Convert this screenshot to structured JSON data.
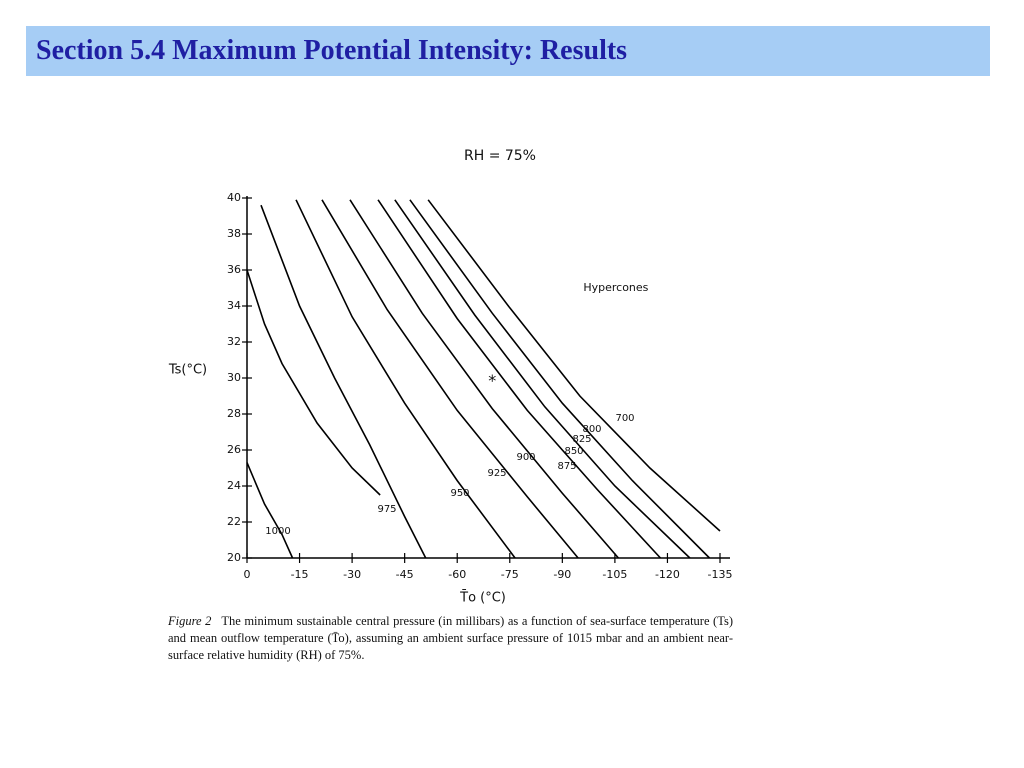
{
  "slide_title": "Section 5.4 Maximum Potential Intensity: Results",
  "caption_label": "Figure 2",
  "caption": "The minimum sustainable central pressure (in millibars) as a function of sea-surface temperature (Ts) and mean outflow temperature (T̄o), assuming an ambient surface pressure of 1015 mbar and an ambient near-surface relative humidity (RH) of 75%.",
  "chart_data": {
    "type": "line",
    "title": "RH = 75%",
    "x_label": "T̄o (°C)",
    "y_label": "Ts(°C)",
    "xlim": [
      0,
      -135
    ],
    "ylim": [
      20,
      40
    ],
    "xticks": [
      0,
      -15,
      -30,
      -45,
      -60,
      -75,
      -90,
      -105,
      -120,
      -135
    ],
    "yticks": [
      20,
      22,
      24,
      26,
      28,
      30,
      32,
      34,
      36,
      38,
      40
    ],
    "annotations": [
      {
        "text": "Hypercones",
        "x": -96,
        "y": 35
      },
      {
        "text": "*",
        "x": -70,
        "y": 29.8
      }
    ],
    "series": [
      {
        "name": "1000",
        "color": "#000000",
        "x": [
          0,
          -5,
          -10,
          -13
        ],
        "values": [
          25.3,
          23,
          21.3,
          20
        ]
      },
      {
        "name": "975",
        "color": "#000000",
        "x": [
          0,
          -5,
          -10,
          -20,
          -30,
          -38
        ],
        "values": [
          36,
          33,
          30.8,
          27.5,
          25,
          23.5
        ]
      },
      {
        "name": "950",
        "color": "#000000",
        "x": [
          -4,
          -15,
          -25,
          -35,
          -45,
          -51
        ],
        "values": [
          39.6,
          34,
          30,
          26.3,
          22.3,
          20
        ]
      },
      {
        "name": "925",
        "color": "#000000",
        "x": [
          -14,
          -30,
          -45,
          -60,
          -76.5
        ],
        "values": [
          39.9,
          33.4,
          28.6,
          24.3,
          20
        ]
      },
      {
        "name": "900",
        "color": "#000000",
        "x": [
          -21.4,
          -40,
          -60,
          -80,
          -94.5
        ],
        "values": [
          39.9,
          33.8,
          28.2,
          23.4,
          20
        ]
      },
      {
        "name": "875",
        "color": "#000000",
        "x": [
          -29.4,
          -50,
          -70,
          -90,
          -106
        ],
        "values": [
          39.9,
          33.6,
          28.3,
          23.6,
          20
        ]
      },
      {
        "name": "850",
        "color": "#000000",
        "x": [
          -37.4,
          -60,
          -80,
          -100,
          -118
        ],
        "values": [
          39.9,
          33.3,
          28.2,
          23.8,
          20
        ]
      },
      {
        "name": "825",
        "color": "#000000",
        "x": [
          -42.2,
          -65,
          -85,
          -105,
          -126.4
        ],
        "values": [
          39.9,
          33.5,
          28.4,
          24,
          20
        ]
      },
      {
        "name": "800",
        "color": "#000000",
        "x": [
          -46.5,
          -70,
          -90,
          -110,
          -132
        ],
        "values": [
          39.9,
          33.6,
          28.6,
          24.3,
          20
        ]
      },
      {
        "name": "700",
        "color": "#000000",
        "x": [
          -51.7,
          -75,
          -95,
          -115,
          -135
        ],
        "values": [
          39.9,
          33.9,
          29,
          25,
          21.5
        ]
      }
    ]
  }
}
